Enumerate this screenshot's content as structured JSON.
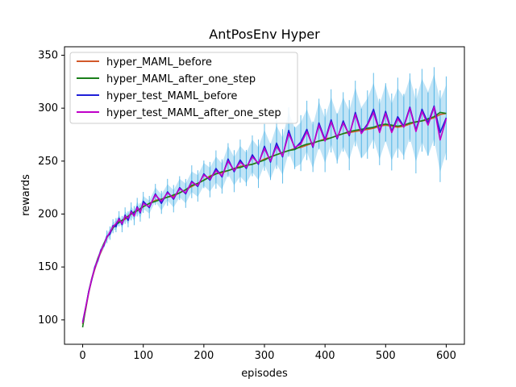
{
  "chart_data": {
    "type": "line",
    "title": "AntPosEnv Hyper",
    "xlabel": "episodes",
    "ylabel": "rewards",
    "xlim": [
      -30,
      630
    ],
    "ylim": [
      77,
      358
    ],
    "xticks": [
      0,
      100,
      200,
      300,
      400,
      500,
      600
    ],
    "yticks": [
      100,
      150,
      200,
      250,
      300,
      350
    ],
    "grid": false,
    "legend_position": "top-left",
    "band_color": "#1f9fe0",
    "series": [
      {
        "name": "hyper_MAML_before",
        "color": "#d2592a",
        "x": [
          0,
          5,
          10,
          15,
          20,
          25,
          30,
          35,
          40,
          45,
          50,
          55,
          60,
          65,
          70,
          75,
          80,
          85,
          90,
          95,
          100,
          110,
          120,
          130,
          140,
          150,
          160,
          170,
          180,
          190,
          200,
          210,
          220,
          230,
          240,
          250,
          260,
          270,
          280,
          290,
          300,
          310,
          320,
          330,
          340,
          350,
          360,
          370,
          380,
          390,
          400,
          410,
          420,
          430,
          440,
          450,
          460,
          470,
          480,
          490,
          500,
          510,
          520,
          530,
          540,
          550,
          560,
          570,
          580,
          590,
          600
        ],
        "y": [
          96,
          110,
          126,
          138,
          148,
          157,
          164,
          171,
          178,
          182,
          187,
          190,
          193,
          194,
          195,
          198,
          200,
          202,
          203,
          205,
          207,
          210,
          213,
          214,
          216,
          217,
          220,
          223,
          226,
          229,
          232,
          236,
          238,
          239,
          241,
          243,
          245,
          246,
          247,
          249,
          252,
          254,
          256,
          258,
          260,
          262,
          263,
          265,
          267,
          269,
          271,
          272,
          274,
          276,
          277,
          278,
          279,
          280,
          281,
          283,
          284,
          283,
          282,
          283,
          285,
          287,
          288,
          289,
          291,
          294,
          295
        ]
      },
      {
        "name": "hyper_MAML_after_one_step",
        "color": "#1a7f1a",
        "x": [
          0,
          5,
          10,
          15,
          20,
          25,
          30,
          35,
          40,
          45,
          50,
          55,
          60,
          65,
          70,
          75,
          80,
          85,
          90,
          95,
          100,
          110,
          120,
          130,
          140,
          150,
          160,
          170,
          180,
          190,
          200,
          210,
          220,
          230,
          240,
          250,
          260,
          270,
          280,
          290,
          300,
          310,
          320,
          330,
          340,
          350,
          360,
          370,
          380,
          390,
          400,
          410,
          420,
          430,
          440,
          450,
          460,
          470,
          480,
          490,
          500,
          510,
          520,
          530,
          540,
          550,
          560,
          570,
          580,
          590,
          600
        ],
        "y": [
          93,
          111,
          127,
          139,
          149,
          158,
          165,
          172,
          178,
          182,
          187,
          190,
          192,
          194,
          196,
          198,
          200,
          202,
          203,
          205,
          207,
          210,
          212,
          214,
          216,
          218,
          220,
          223,
          227,
          229,
          232,
          235,
          238,
          240,
          241,
          243,
          244,
          246,
          247,
          249,
          251,
          254,
          256,
          258,
          260,
          261,
          264,
          266,
          267,
          269,
          270,
          272,
          274,
          276,
          278,
          279,
          280,
          281,
          282,
          284,
          285,
          284,
          283,
          284,
          286,
          287,
          288,
          290,
          292,
          296,
          295
        ]
      },
      {
        "name": "hyper_test_MAML_before",
        "color": "#1f1fd8",
        "x": [
          0,
          5,
          10,
          15,
          20,
          25,
          30,
          35,
          40,
          45,
          50,
          55,
          60,
          65,
          70,
          75,
          80,
          85,
          90,
          95,
          100,
          110,
          120,
          130,
          140,
          150,
          160,
          170,
          180,
          190,
          200,
          210,
          220,
          230,
          240,
          250,
          260,
          270,
          280,
          290,
          300,
          310,
          320,
          330,
          340,
          350,
          360,
          370,
          380,
          390,
          400,
          410,
          420,
          430,
          440,
          450,
          460,
          470,
          480,
          490,
          500,
          510,
          520,
          530,
          540,
          550,
          560,
          570,
          580,
          590,
          600
        ],
        "y": [
          98,
          112,
          127,
          138,
          150,
          156,
          166,
          170,
          179,
          181,
          189,
          188,
          196,
          190,
          199,
          194,
          203,
          199,
          207,
          201,
          212,
          206,
          219,
          210,
          221,
          214,
          225,
          219,
          231,
          226,
          238,
          232,
          243,
          235,
          252,
          240,
          251,
          243,
          256,
          247,
          264,
          249,
          267,
          254,
          279,
          262,
          268,
          280,
          263,
          286,
          270,
          289,
          271,
          288,
          274,
          296,
          277,
          285,
          299,
          278,
          297,
          278,
          292,
          283,
          301,
          279,
          299,
          286,
          302,
          277,
          291
        ]
      },
      {
        "name": "hyper_test_MAML_after_one_step",
        "color": "#c000c8",
        "x": [
          0,
          5,
          10,
          15,
          20,
          25,
          30,
          35,
          40,
          45,
          50,
          55,
          60,
          65,
          70,
          75,
          80,
          85,
          90,
          95,
          100,
          110,
          120,
          130,
          140,
          150,
          160,
          170,
          180,
          190,
          200,
          210,
          220,
          230,
          240,
          250,
          260,
          270,
          280,
          290,
          300,
          310,
          320,
          330,
          340,
          350,
          360,
          370,
          380,
          390,
          400,
          410,
          420,
          430,
          440,
          450,
          460,
          470,
          480,
          490,
          500,
          510,
          520,
          530,
          540,
          550,
          560,
          570,
          580,
          590,
          600
        ],
        "y": [
          97,
          112,
          126,
          139,
          149,
          157,
          165,
          171,
          178,
          183,
          188,
          191,
          195,
          191,
          198,
          196,
          202,
          198,
          206,
          202,
          210,
          207,
          218,
          212,
          220,
          215,
          224,
          220,
          230,
          227,
          237,
          233,
          241,
          236,
          250,
          241,
          249,
          244,
          254,
          248,
          262,
          250,
          264,
          255,
          276,
          263,
          266,
          278,
          264,
          284,
          269,
          287,
          272,
          286,
          275,
          294,
          276,
          284,
          296,
          277,
          295,
          277,
          290,
          282,
          300,
          278,
          297,
          284,
          301,
          270,
          290
        ]
      }
    ]
  }
}
